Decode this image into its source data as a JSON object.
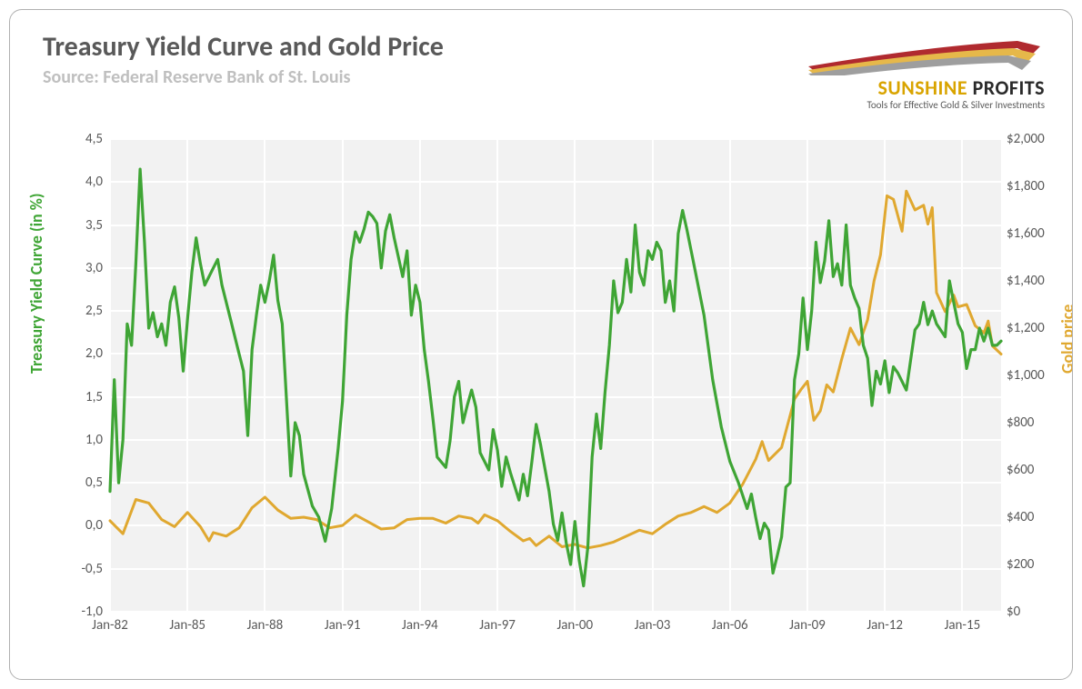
{
  "title": "Treasury Yield Curve and Gold Price",
  "subtitle": "Source: Federal Reserve Bank of St. Louis",
  "logo": {
    "brand_a": "SUNSHINE",
    "brand_b": " PROFITS",
    "tagline": "Tools for Effective Gold & Silver Investments",
    "swoosh_colors": [
      "#b02a2f",
      "#e6b84a",
      "#9e9e9e"
    ]
  },
  "chart": {
    "type": "line-dual-axis",
    "background_color_plot": "#f2f2f2",
    "gridline_color": "#ffffff",
    "frame_border_color": "#b0b0b0",
    "tick_font_color": "#595959",
    "tick_fontsize": 15,
    "title_fontsize": 30,
    "title_color": "#595959",
    "subtitle_fontsize": 20,
    "subtitle_color": "#bfbfbf",
    "x_ticks": [
      "Jan-82",
      "Jan-85",
      "Jan-88",
      "Jan-91",
      "Jan-94",
      "Jan-97",
      "Jan-00",
      "Jan-03",
      "Jan-06",
      "Jan-09",
      "Jan-12",
      "Jan-15"
    ],
    "x_range_months": [
      0,
      414
    ],
    "y_left": {
      "label": "Treasury Yield Curve (in %)",
      "label_color": "#3fa535",
      "min": -1.0,
      "max": 4.5,
      "tick_step": 0.5,
      "ticks": [
        "-1,0",
        "-0,5",
        "0,0",
        "0,5",
        "1,0",
        "1,5",
        "2,0",
        "2,5",
        "3,0",
        "3,5",
        "4,0",
        "4,5"
      ]
    },
    "y_right": {
      "label": "Gold price",
      "label_color": "#e0a830",
      "min": 0,
      "max": 2000,
      "tick_step": 200,
      "ticks": [
        "$0",
        "$200",
        "$400",
        "$600",
        "$800",
        "$1,000",
        "$1,200",
        "$1,400",
        "$1,600",
        "$1,800",
        "$2,000"
      ]
    },
    "series": {
      "yield_curve": {
        "color": "#3fa535",
        "stroke_width": 3.2,
        "axis": "left",
        "data": [
          [
            0,
            0.4
          ],
          [
            2,
            1.7
          ],
          [
            4,
            0.5
          ],
          [
            6,
            1.0
          ],
          [
            8,
            2.35
          ],
          [
            10,
            2.1
          ],
          [
            12,
            3.05
          ],
          [
            14,
            4.15
          ],
          [
            16,
            3.3
          ],
          [
            18,
            2.3
          ],
          [
            20,
            2.48
          ],
          [
            22,
            2.2
          ],
          [
            24,
            2.35
          ],
          [
            26,
            2.1
          ],
          [
            28,
            2.6
          ],
          [
            30,
            2.78
          ],
          [
            32,
            2.42
          ],
          [
            34,
            1.8
          ],
          [
            36,
            2.4
          ],
          [
            38,
            2.95
          ],
          [
            40,
            3.35
          ],
          [
            42,
            3.05
          ],
          [
            44,
            2.8
          ],
          [
            48,
            3.0
          ],
          [
            50,
            3.1
          ],
          [
            52,
            2.8
          ],
          [
            56,
            2.4
          ],
          [
            60,
            2.0
          ],
          [
            62,
            1.8
          ],
          [
            64,
            1.05
          ],
          [
            66,
            2.05
          ],
          [
            68,
            2.45
          ],
          [
            70,
            2.8
          ],
          [
            72,
            2.6
          ],
          [
            74,
            2.85
          ],
          [
            76,
            3.15
          ],
          [
            78,
            2.62
          ],
          [
            80,
            2.35
          ],
          [
            84,
            0.58
          ],
          [
            86,
            1.2
          ],
          [
            88,
            1.05
          ],
          [
            90,
            0.6
          ],
          [
            94,
            0.23
          ],
          [
            97,
            0.1
          ],
          [
            100,
            -0.18
          ],
          [
            103,
            0.2
          ],
          [
            106,
            0.9
          ],
          [
            108,
            1.45
          ],
          [
            110,
            2.45
          ],
          [
            112,
            3.1
          ],
          [
            114,
            3.42
          ],
          [
            116,
            3.3
          ],
          [
            118,
            3.45
          ],
          [
            120,
            3.65
          ],
          [
            122,
            3.6
          ],
          [
            124,
            3.52
          ],
          [
            126,
            3.0
          ],
          [
            128,
            3.43
          ],
          [
            130,
            3.62
          ],
          [
            132,
            3.35
          ],
          [
            136,
            2.9
          ],
          [
            138,
            3.2
          ],
          [
            140,
            2.45
          ],
          [
            142,
            2.8
          ],
          [
            144,
            2.6
          ],
          [
            146,
            2.05
          ],
          [
            148,
            1.68
          ],
          [
            150,
            1.25
          ],
          [
            152,
            0.8
          ],
          [
            156,
            0.68
          ],
          [
            158,
            0.99
          ],
          [
            160,
            1.5
          ],
          [
            162,
            1.68
          ],
          [
            164,
            1.2
          ],
          [
            166,
            1.4
          ],
          [
            168,
            1.58
          ],
          [
            170,
            1.38
          ],
          [
            172,
            0.85
          ],
          [
            176,
            0.65
          ],
          [
            178,
            1.12
          ],
          [
            180,
            0.88
          ],
          [
            182,
            0.46
          ],
          [
            184,
            0.8
          ],
          [
            186,
            0.62
          ],
          [
            190,
            0.3
          ],
          [
            192,
            0.6
          ],
          [
            194,
            0.35
          ],
          [
            196,
            0.75
          ],
          [
            198,
            1.18
          ],
          [
            200,
            0.95
          ],
          [
            204,
            0.4
          ],
          [
            206,
            0.02
          ],
          [
            208,
            -0.17
          ],
          [
            210,
            0.15
          ],
          [
            212,
            -0.2
          ],
          [
            214,
            -0.45
          ],
          [
            216,
            0.05
          ],
          [
            218,
            -0.4
          ],
          [
            220,
            -0.7
          ],
          [
            222,
            -0.25
          ],
          [
            224,
            0.8
          ],
          [
            226,
            1.3
          ],
          [
            228,
            0.9
          ],
          [
            230,
            1.55
          ],
          [
            232,
            2.1
          ],
          [
            234,
            2.85
          ],
          [
            236,
            2.48
          ],
          [
            238,
            2.6
          ],
          [
            240,
            3.1
          ],
          [
            242,
            2.72
          ],
          [
            244,
            3.5
          ],
          [
            246,
            2.95
          ],
          [
            248,
            2.8
          ],
          [
            250,
            3.2
          ],
          [
            252,
            3.1
          ],
          [
            254,
            3.3
          ],
          [
            256,
            3.2
          ],
          [
            258,
            2.6
          ],
          [
            260,
            2.85
          ],
          [
            262,
            2.5
          ],
          [
            264,
            3.4
          ],
          [
            266,
            3.67
          ],
          [
            268,
            3.45
          ],
          [
            272,
            2.95
          ],
          [
            276,
            2.45
          ],
          [
            280,
            1.7
          ],
          [
            284,
            1.15
          ],
          [
            288,
            0.75
          ],
          [
            292,
            0.5
          ],
          [
            296,
            0.2
          ],
          [
            298,
            0.37
          ],
          [
            300,
            0.1
          ],
          [
            302,
            -0.15
          ],
          [
            304,
            0.03
          ],
          [
            306,
            -0.05
          ],
          [
            308,
            -0.55
          ],
          [
            310,
            -0.35
          ],
          [
            312,
            -0.13
          ],
          [
            314,
            0.45
          ],
          [
            316,
            0.5
          ],
          [
            318,
            1.7
          ],
          [
            320,
            2.0
          ],
          [
            322,
            2.65
          ],
          [
            324,
            2.05
          ],
          [
            326,
            2.5
          ],
          [
            328,
            3.3
          ],
          [
            330,
            2.83
          ],
          [
            332,
            3.08
          ],
          [
            334,
            3.55
          ],
          [
            336,
            2.9
          ],
          [
            338,
            3.05
          ],
          [
            340,
            2.8
          ],
          [
            342,
            3.5
          ],
          [
            344,
            2.8
          ],
          [
            346,
            2.65
          ],
          [
            348,
            2.53
          ],
          [
            350,
            2.1
          ],
          [
            352,
            1.95
          ],
          [
            354,
            1.4
          ],
          [
            356,
            1.8
          ],
          [
            358,
            1.65
          ],
          [
            360,
            1.92
          ],
          [
            362,
            1.55
          ],
          [
            364,
            1.85
          ],
          [
            366,
            1.78
          ],
          [
            370,
            1.58
          ],
          [
            374,
            2.28
          ],
          [
            376,
            2.35
          ],
          [
            378,
            2.6
          ],
          [
            380,
            2.34
          ],
          [
            382,
            2.5
          ],
          [
            384,
            2.35
          ],
          [
            388,
            2.2
          ],
          [
            390,
            2.85
          ],
          [
            392,
            2.6
          ],
          [
            394,
            2.35
          ],
          [
            396,
            2.25
          ],
          [
            398,
            1.83
          ],
          [
            400,
            2.05
          ],
          [
            402,
            2.05
          ],
          [
            404,
            2.3
          ],
          [
            406,
            2.15
          ],
          [
            408,
            2.3
          ],
          [
            410,
            2.1
          ],
          [
            412,
            2.1
          ],
          [
            414,
            2.15
          ]
        ]
      },
      "gold": {
        "color": "#e0a830",
        "stroke_width": 3.0,
        "axis": "right",
        "data": [
          [
            0,
            385
          ],
          [
            6,
            330
          ],
          [
            12,
            475
          ],
          [
            18,
            460
          ],
          [
            24,
            390
          ],
          [
            30,
            360
          ],
          [
            36,
            420
          ],
          [
            42,
            360
          ],
          [
            46,
            300
          ],
          [
            48,
            335
          ],
          [
            54,
            320
          ],
          [
            60,
            355
          ],
          [
            66,
            440
          ],
          [
            72,
            485
          ],
          [
            78,
            430
          ],
          [
            84,
            395
          ],
          [
            90,
            400
          ],
          [
            96,
            390
          ],
          [
            102,
            355
          ],
          [
            108,
            365
          ],
          [
            114,
            410
          ],
          [
            120,
            380
          ],
          [
            126,
            350
          ],
          [
            132,
            355
          ],
          [
            138,
            390
          ],
          [
            144,
            395
          ],
          [
            150,
            395
          ],
          [
            156,
            375
          ],
          [
            162,
            405
          ],
          [
            168,
            395
          ],
          [
            171,
            375
          ],
          [
            174,
            410
          ],
          [
            180,
            385
          ],
          [
            186,
            340
          ],
          [
            192,
            300
          ],
          [
            195,
            310
          ],
          [
            198,
            280
          ],
          [
            204,
            320
          ],
          [
            210,
            275
          ],
          [
            216,
            285
          ],
          [
            222,
            270
          ],
          [
            228,
            280
          ],
          [
            234,
            295
          ],
          [
            240,
            320
          ],
          [
            246,
            345
          ],
          [
            252,
            330
          ],
          [
            258,
            370
          ],
          [
            264,
            405
          ],
          [
            270,
            420
          ],
          [
            276,
            445
          ],
          [
            282,
            420
          ],
          [
            288,
            460
          ],
          [
            294,
            540
          ],
          [
            300,
            645
          ],
          [
            303,
            720
          ],
          [
            306,
            640
          ],
          [
            312,
            695
          ],
          [
            318,
            900
          ],
          [
            321,
            940
          ],
          [
            324,
            975
          ],
          [
            327,
            810
          ],
          [
            330,
            850
          ],
          [
            333,
            960
          ],
          [
            336,
            930
          ],
          [
            340,
            1070
          ],
          [
            344,
            1200
          ],
          [
            348,
            1130
          ],
          [
            352,
            1235
          ],
          [
            355,
            1400
          ],
          [
            358,
            1510
          ],
          [
            361,
            1760
          ],
          [
            364,
            1745
          ],
          [
            368,
            1610
          ],
          [
            370,
            1780
          ],
          [
            374,
            1700
          ],
          [
            378,
            1720
          ],
          [
            380,
            1640
          ],
          [
            382,
            1710
          ],
          [
            384,
            1350
          ],
          [
            388,
            1270
          ],
          [
            392,
            1340
          ],
          [
            394,
            1290
          ],
          [
            398,
            1300
          ],
          [
            402,
            1210
          ],
          [
            406,
            1180
          ],
          [
            408,
            1230
          ],
          [
            410,
            1125
          ],
          [
            414,
            1090
          ]
        ]
      }
    }
  }
}
